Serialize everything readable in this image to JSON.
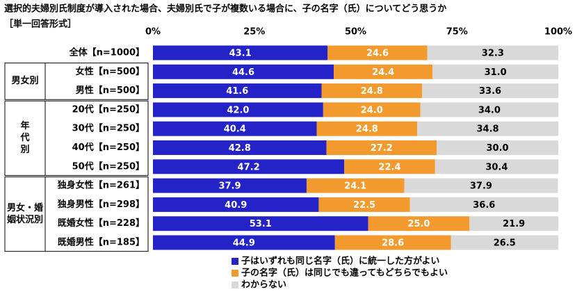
{
  "chart_data": {
    "type": "stacked-bar-horizontal",
    "title": "選択的夫婦別氏制度が導入された場合、夫婦別氏で子が複数いる場合に、子の名字（氏）についてどう思うか",
    "subtitle": "［単一回答形式］",
    "categories": [
      "全体【n=1000】",
      "女性【n=500】",
      "男性【n=500】",
      "20代【n=250】",
      "30代【n=250】",
      "40代【n=250】",
      "50代【n=250】",
      "独身女性【n=261】",
      "独身男性【n=298】",
      "既婚女性【n=228】",
      "既婚男性【n=185】"
    ],
    "category_groups": [
      null,
      "男女別",
      "男女別",
      "年代別",
      "年代別",
      "年代別",
      "年代別",
      "男女・婚姻状況別",
      "男女・婚姻状況別",
      "男女・婚姻状況別",
      "男女・婚姻状況別"
    ],
    "series": [
      {
        "name": "子はいずれも同じ名字（氏）に統一した方がよい",
        "color": "#2323c8",
        "label_color": "#ffffff",
        "values": [
          43.1,
          44.6,
          41.6,
          42.0,
          40.4,
          42.8,
          47.2,
          37.9,
          40.9,
          53.1,
          44.9
        ],
        "value_labels": [
          "43.1",
          "44.6",
          "41.6",
          "42.0",
          "40.4",
          "42.8",
          "47.2",
          "37.9",
          "40.9",
          "53.1",
          "44.9"
        ]
      },
      {
        "name": "子の名字（氏）は同じでも違ってもどちらでもよい",
        "color": "#f39a2e",
        "label_color": "#ffffff",
        "values": [
          24.6,
          24.4,
          24.8,
          24.0,
          24.8,
          27.2,
          22.4,
          24.1,
          22.5,
          25.0,
          28.6
        ],
        "value_labels": [
          "24.6",
          "24.4",
          "24.8",
          "24.0",
          "24.8",
          "27.2",
          "22.4",
          "24.1",
          "22.5",
          "25.0",
          "28.6"
        ]
      },
      {
        "name": "わからない",
        "color": "#d9d9d9",
        "label_color": "#000000",
        "values": [
          32.3,
          31.0,
          33.6,
          34.0,
          34.8,
          30.0,
          30.4,
          37.9,
          36.6,
          21.9,
          26.5
        ],
        "value_labels": [
          "32.3",
          "31.0",
          "33.6",
          "34.0",
          "34.8",
          "30.0",
          "30.4",
          "37.9",
          "36.6",
          "21.9",
          "26.5"
        ]
      }
    ],
    "xlim": [
      0,
      100
    ],
    "xticks": [
      {
        "value": 0,
        "label": "0%"
      },
      {
        "value": 25,
        "label": "25%"
      },
      {
        "value": 50,
        "label": "50%"
      },
      {
        "value": 75,
        "label": "75%"
      },
      {
        "value": 100,
        "label": "100%"
      }
    ],
    "grid": false,
    "legend": "bottom"
  }
}
